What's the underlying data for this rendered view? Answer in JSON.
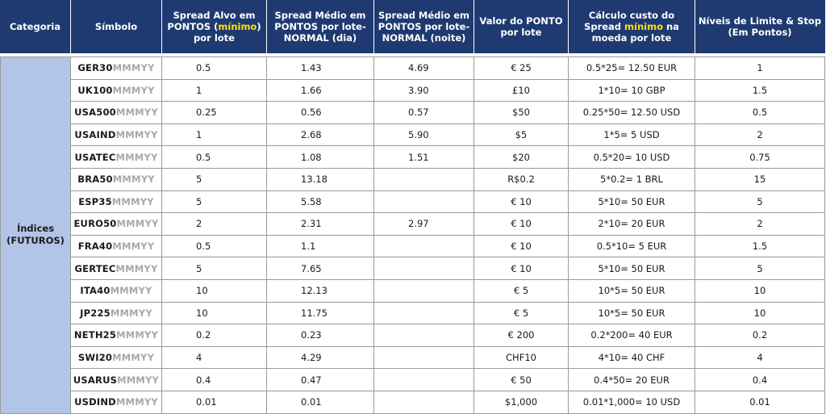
{
  "headers": {
    "categoria": "Categoria",
    "simbolo": "Símbolo",
    "spread_alvo_1": "Spread Alvo em PONTOS (",
    "spread_alvo_hl": "mínimo",
    "spread_alvo_2": ") por lote",
    "spread_dia": "Spread Médio em PONTOS por lote-NORMAL (dia)",
    "spread_noite": "Spread Médio em PONTOS por lote-NORMAL (noite)",
    "valor_ponto": "Valor do PONTO por lote",
    "calculo_1": "Cálculo custo do Spread ",
    "calculo_hl": "mínimo",
    "calculo_2": " na moeda por lote",
    "niveis": "Níveis de Limite & Stop (Em Pontos)"
  },
  "category": {
    "line1": "Índices",
    "line2": "(FUTUROS)"
  },
  "symbol_suffix": "MMMYY",
  "colors": {
    "header_bg": "#1f3a70",
    "header_text": "#ffffff",
    "highlight": "#ffe300",
    "category_bg": "#b3c5e6",
    "suffix_text": "#a8a8a8"
  },
  "rows": [
    {
      "symbol": "GER30",
      "alvo": "0.5",
      "dia": "1.43",
      "noite": "4.69",
      "ponto": "€ 25",
      "calc": "0.5*25= 12.50 EUR",
      "nivel": "1"
    },
    {
      "symbol": "UK100",
      "alvo": "1",
      "dia": "1.66",
      "noite": "3.90",
      "ponto": "£10",
      "calc": "1*10= 10 GBP",
      "nivel": "1.5"
    },
    {
      "symbol": "USA500",
      "alvo": "0.25",
      "dia": "0.56",
      "noite": "0.57",
      "ponto": "$50",
      "calc": "0.25*50= 12.50 USD",
      "nivel": "0.5"
    },
    {
      "symbol": "USAIND",
      "alvo": "1",
      "dia": "2.68",
      "noite": "5.90",
      "ponto": "$5",
      "calc": "1*5= 5 USD",
      "nivel": "2"
    },
    {
      "symbol": "USATEC",
      "alvo": "0.5",
      "dia": "1.08",
      "noite": "1.51",
      "ponto": "$20",
      "calc": "0.5*20= 10 USD",
      "nivel": "0.75"
    },
    {
      "symbol": "BRA50",
      "alvo": "5",
      "dia": "13.18",
      "noite": "",
      "ponto": "R$0.2",
      "calc": "5*0.2= 1 BRL",
      "nivel": "15"
    },
    {
      "symbol": "ESP35",
      "alvo": "5",
      "dia": "5.58",
      "noite": "",
      "ponto": "€ 10",
      "calc": "5*10= 50 EUR",
      "nivel": "5"
    },
    {
      "symbol": "EURO50",
      "alvo": "2",
      "dia": "2.31",
      "noite": "2.97",
      "ponto": "€ 10",
      "calc": "2*10= 20 EUR",
      "nivel": "2"
    },
    {
      "symbol": "FRA40",
      "alvo": "0.5",
      "dia": "1.1",
      "noite": "",
      "ponto": "€ 10",
      "calc": "0.5*10= 5 EUR",
      "nivel": "1.5"
    },
    {
      "symbol": "GERTEC",
      "alvo": "5",
      "dia": "7.65",
      "noite": "",
      "ponto": "€ 10",
      "calc": "5*10= 50 EUR",
      "nivel": "5"
    },
    {
      "symbol": "ITA40",
      "alvo": "10",
      "dia": "12.13",
      "noite": "",
      "ponto": "€ 5",
      "calc": "10*5= 50 EUR",
      "nivel": "10"
    },
    {
      "symbol": "JP225",
      "alvo": "10",
      "dia": "11.75",
      "noite": "",
      "ponto": "€ 5",
      "calc": "10*5= 50 EUR",
      "nivel": "10"
    },
    {
      "symbol": "NETH25",
      "alvo": "0.2",
      "dia": "0.23",
      "noite": "",
      "ponto": "€ 200",
      "calc": "0.2*200= 40 EUR",
      "nivel": "0.2"
    },
    {
      "symbol": "SWI20",
      "alvo": "4",
      "dia": "4.29",
      "noite": "",
      "ponto": "CHF10",
      "calc": "4*10= 40 CHF",
      "nivel": "4"
    },
    {
      "symbol": "USARUS",
      "alvo": "0.4",
      "dia": "0.47",
      "noite": "",
      "ponto": "€ 50",
      "calc": "0.4*50= 20 EUR",
      "nivel": "0.4"
    },
    {
      "symbol": "USDIND",
      "alvo": "0.01",
      "dia": "0.01",
      "noite": "",
      "ponto": "$1,000",
      "calc": "0.01*1,000= 10 USD",
      "nivel": "0.01"
    }
  ]
}
